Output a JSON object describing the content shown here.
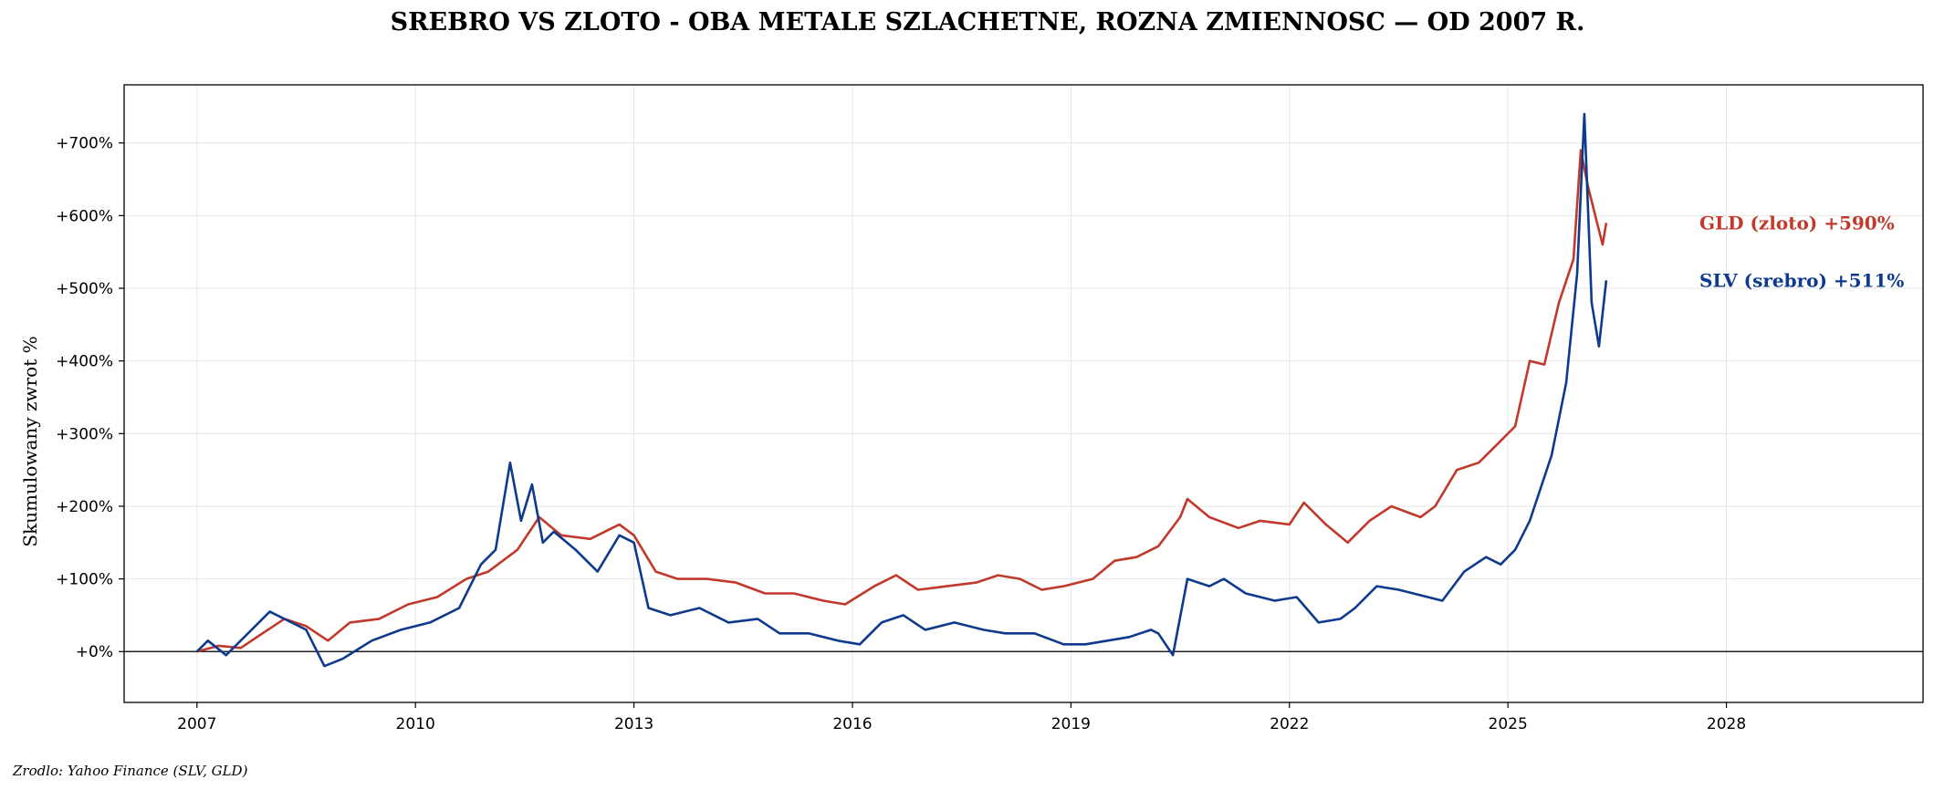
{
  "chart_data": {
    "type": "line",
    "title": "SREBRO VS ZLOTO - OBA METALE SZLACHETNE, ROZNA ZMIENNOSC — OD 2007 R.",
    "ylabel": "Skumulowany zwrot %",
    "xlabel": "",
    "source": "Zrodlo: Yahoo Finance (SLV, GLD)",
    "xlim": [
      2006.0,
      2030.7
    ],
    "ylim": [
      -70,
      780
    ],
    "x_ticks": [
      2007,
      2010,
      2013,
      2016,
      2019,
      2022,
      2025,
      2028
    ],
    "x_tick_labels": [
      "2007",
      "2010",
      "2013",
      "2016",
      "2019",
      "2022",
      "2025",
      "2028"
    ],
    "y_ticks": [
      0,
      100,
      200,
      300,
      400,
      500,
      600,
      700
    ],
    "y_tick_labels": [
      "+0%",
      "+100%",
      "+200%",
      "+300%",
      "+400%",
      "+500%",
      "+600%",
      "+700%"
    ],
    "grid": true,
    "zero_line": true,
    "end_labels": [
      {
        "text": "GLD (zloto)  +590%",
        "color": "#c0392b",
        "y": 590
      },
      {
        "text": "SLV (srebro)  +511%",
        "color": "#0d3a8c",
        "y": 511
      }
    ],
    "series": [
      {
        "name": "GLD (zloto)",
        "color": "#c0392b",
        "x": [
          2007.0,
          2007.3,
          2007.6,
          2007.9,
          2008.2,
          2008.5,
          2008.8,
          2009.1,
          2009.5,
          2009.9,
          2010.3,
          2010.7,
          2011.0,
          2011.4,
          2011.7,
          2012.0,
          2012.4,
          2012.8,
          2013.0,
          2013.3,
          2013.6,
          2014.0,
          2014.4,
          2014.8,
          2015.2,
          2015.6,
          2015.9,
          2016.3,
          2016.6,
          2016.9,
          2017.3,
          2017.7,
          2018.0,
          2018.3,
          2018.6,
          2018.9,
          2019.3,
          2019.6,
          2019.9,
          2020.2,
          2020.5,
          2020.6,
          2020.9,
          2021.3,
          2021.6,
          2022.0,
          2022.2,
          2022.5,
          2022.8,
          2023.1,
          2023.4,
          2023.8,
          2024.0,
          2024.3,
          2024.6,
          2024.9,
          2025.1,
          2025.3,
          2025.5,
          2025.7,
          2025.9,
          2026.0,
          2026.1,
          2026.2,
          2026.3,
          2026.35
        ],
        "y": [
          0,
          8,
          5,
          25,
          45,
          35,
          15,
          40,
          45,
          65,
          75,
          100,
          110,
          140,
          185,
          160,
          155,
          175,
          160,
          110,
          100,
          100,
          95,
          80,
          80,
          70,
          65,
          90,
          105,
          85,
          90,
          95,
          105,
          100,
          85,
          90,
          100,
          125,
          130,
          145,
          185,
          210,
          185,
          170,
          180,
          175,
          205,
          175,
          150,
          180,
          200,
          185,
          200,
          250,
          260,
          290,
          310,
          400,
          395,
          480,
          540,
          690,
          640,
          600,
          560,
          590
        ]
      },
      {
        "name": "SLV (srebro)",
        "color": "#0d3a8c",
        "x": [
          2007.0,
          2007.15,
          2007.4,
          2007.7,
          2008.0,
          2008.2,
          2008.5,
          2008.75,
          2009.0,
          2009.4,
          2009.8,
          2010.2,
          2010.6,
          2010.9,
          2011.1,
          2011.3,
          2011.45,
          2011.6,
          2011.75,
          2011.9,
          2012.2,
          2012.5,
          2012.8,
          2013.0,
          2013.2,
          2013.5,
          2013.9,
          2014.3,
          2014.7,
          2015.0,
          2015.4,
          2015.8,
          2016.1,
          2016.4,
          2016.7,
          2017.0,
          2017.4,
          2017.8,
          2018.1,
          2018.5,
          2018.9,
          2019.2,
          2019.5,
          2019.8,
          2020.1,
          2020.2,
          2020.4,
          2020.6,
          2020.9,
          2021.1,
          2021.4,
          2021.8,
          2022.1,
          2022.4,
          2022.7,
          2022.9,
          2023.2,
          2023.5,
          2023.9,
          2024.1,
          2024.4,
          2024.7,
          2024.9,
          2025.1,
          2025.3,
          2025.6,
          2025.8,
          2025.95,
          2026.05,
          2026.15,
          2026.25,
          2026.35
        ],
        "y": [
          0,
          15,
          -5,
          25,
          55,
          45,
          30,
          -20,
          -10,
          15,
          30,
          40,
          60,
          120,
          140,
          260,
          180,
          230,
          150,
          165,
          140,
          110,
          160,
          150,
          60,
          50,
          60,
          40,
          45,
          25,
          25,
          15,
          10,
          40,
          50,
          30,
          40,
          30,
          25,
          25,
          10,
          10,
          15,
          20,
          30,
          25,
          -5,
          100,
          90,
          100,
          80,
          70,
          75,
          40,
          45,
          60,
          90,
          85,
          75,
          70,
          110,
          130,
          120,
          140,
          180,
          270,
          370,
          520,
          740,
          480,
          420,
          511
        ]
      }
    ]
  }
}
